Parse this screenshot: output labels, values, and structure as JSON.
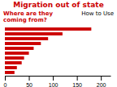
{
  "chart_data": {
    "type": "bar",
    "orientation": "horizontal",
    "title": "Migration out of state",
    "subtitle": "Where are they\ncoming from?",
    "annotations": [
      "How to Use"
    ],
    "categories": [
      null,
      null,
      null,
      null,
      null,
      null,
      null,
      null,
      null,
      null
    ],
    "values": [
      180,
      120,
      90,
      75,
      60,
      50,
      40,
      35,
      25,
      20
    ],
    "color": "#cc0000",
    "xlim": [
      0,
      220
    ],
    "xticks": [
      0,
      50,
      100,
      150,
      200
    ],
    "tick_labels": "x",
    "grid": false
  }
}
